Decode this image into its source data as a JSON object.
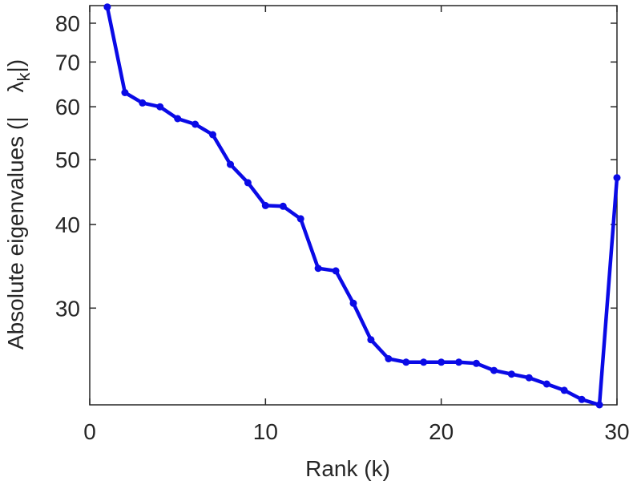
{
  "chart_data": {
    "type": "line",
    "xlabel": "Rank (k)",
    "ylabel": "Absolute eigenvalues (|λk|)",
    "ylabel_parts": {
      "prefix": "Absolute eigenvalues (|",
      "symbol": "λ",
      "subscript": "k",
      "suffix": "|)"
    },
    "xlim": [
      0,
      30
    ],
    "ylim": [
      21.5,
      85
    ],
    "yscale": "log",
    "xticks": [
      0,
      10,
      20,
      30
    ],
    "xtick_labels": [
      "0",
      "10",
      "20",
      "30"
    ],
    "yticks": [
      30,
      40,
      50,
      60,
      70,
      80
    ],
    "ytick_labels": [
      "30",
      "40",
      "50",
      "60",
      "70",
      "80"
    ],
    "grid": false,
    "series": [
      {
        "color": "#0a0ae6",
        "x": [
          1,
          2,
          3,
          4,
          5,
          6,
          7,
          8,
          9,
          10,
          11,
          12,
          13,
          14,
          15,
          16,
          17,
          18,
          19,
          20,
          21,
          22,
          23,
          24,
          25,
          26,
          27,
          28,
          29,
          30
        ],
        "y": [
          84.6,
          63.0,
          60.8,
          60.0,
          57.6,
          56.5,
          54.5,
          49.2,
          46.2,
          42.7,
          42.6,
          40.8,
          34.4,
          34.1,
          30.5,
          26.9,
          25.2,
          24.9,
          24.9,
          24.9,
          24.9,
          24.8,
          24.2,
          23.9,
          23.6,
          23.1,
          22.6,
          21.9,
          21.5,
          47.0
        ]
      }
    ]
  }
}
